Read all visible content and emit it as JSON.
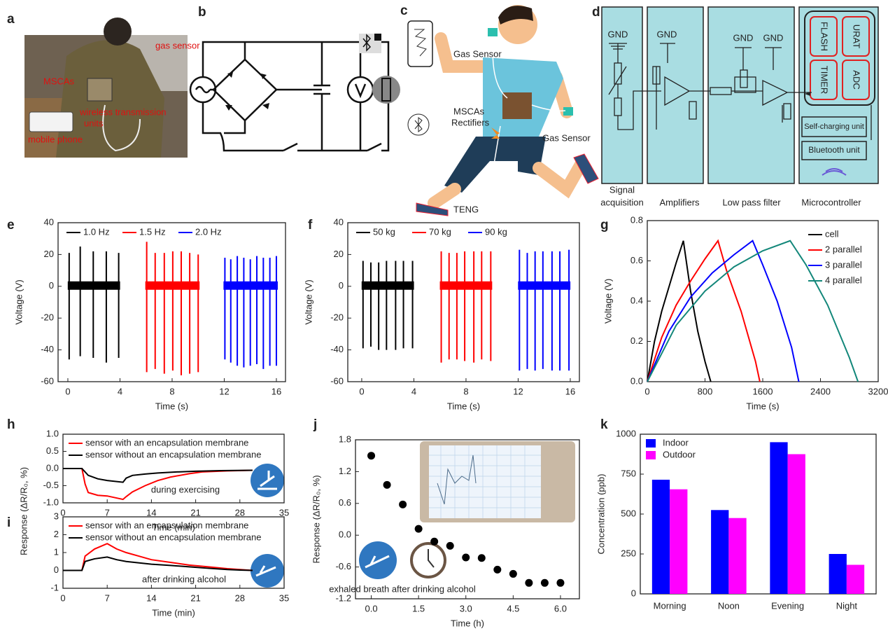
{
  "panel_labels": [
    "a",
    "b",
    "c",
    "d",
    "e",
    "f",
    "g",
    "h",
    "i",
    "j",
    "k"
  ],
  "photo_labels": [
    "gas sensor",
    "MSCAs",
    "wireless transmission",
    "units",
    "mobile phone"
  ],
  "runner_labels": [
    "Gas Sensor",
    "MSCAs",
    "Rectifiers",
    "Gas Sensor",
    "TENG"
  ],
  "block_diagram": {
    "gnd": [
      "GND",
      "GND",
      "GND",
      "GND"
    ],
    "chips": [
      "FLASH",
      "URAT",
      "TIMER",
      "ADC"
    ],
    "units": [
      "Self-charging unit",
      "Bluetooth unit"
    ],
    "blocks": [
      "Signal",
      "acquisition",
      "Amplifiers",
      "Low pass filter",
      "Microcontroller"
    ]
  },
  "chart_data": [
    {
      "type": "spike",
      "xlabel": "Time (s)",
      "ylabel": "Voltage (V)",
      "xlim": [
        -0.75,
        16.7
      ],
      "ylim": [
        -60,
        40
      ],
      "xticks": [
        0,
        4,
        8,
        12,
        16
      ],
      "yticks": [
        -60,
        -40,
        -20,
        0,
        20,
        40
      ],
      "legend": "top",
      "series": [
        {
          "name": "1.0 Hz",
          "color": "#000000",
          "x": [
            0.1,
            0.95,
            1.95,
            2.95,
            3.9
          ],
          "values": [
            21,
            25,
            22,
            22,
            21
          ],
          "min_values": [
            -46,
            -44,
            -45,
            -48,
            -45
          ]
        },
        {
          "name": "1.5 Hz",
          "color": "#ff0000",
          "x": [
            6.05,
            6.7,
            7.4,
            8.05,
            8.7,
            9.35,
            10
          ],
          "values": [
            28,
            21,
            21,
            22,
            22,
            21,
            20
          ],
          "min_values": [
            -54,
            -52,
            -55,
            -53,
            -56,
            -55,
            -54
          ]
        },
        {
          "name": "2.0 Hz",
          "color": "#0000ff",
          "x": [
            12.05,
            12.5,
            13,
            13.5,
            14,
            14.5,
            15,
            15.5,
            16
          ],
          "values": [
            18,
            17,
            19,
            18,
            17,
            19,
            18,
            18,
            19
          ],
          "min_values": [
            -46,
            -48,
            -50,
            -51,
            -50,
            -49,
            -52,
            -50,
            -50
          ]
        }
      ]
    },
    {
      "type": "spike",
      "xlabel": "Time (s)",
      "ylabel": "Voltage (V)",
      "xlim": [
        -1.07,
        16.7
      ],
      "ylim": [
        -60,
        40
      ],
      "xticks": [
        0,
        4,
        8,
        12,
        16
      ],
      "yticks": [
        -60,
        -40,
        -20,
        0,
        20,
        40
      ],
      "legend": "top",
      "series": [
        {
          "name": "50 kg",
          "color": "#000000",
          "x": [
            0.1,
            0.7,
            1.3,
            1.9,
            2.6,
            3.2,
            3.9
          ],
          "values": [
            16,
            15,
            15,
            16,
            16,
            16,
            16
          ],
          "min_values": [
            -39,
            -38,
            -40,
            -40,
            -40,
            -39,
            -39
          ]
        },
        {
          "name": "70 kg",
          "color": "#ff0000",
          "x": [
            6.1,
            6.7,
            7.3,
            7.9,
            8.6,
            9.2,
            9.9
          ],
          "values": [
            22,
            21,
            21,
            22,
            22,
            22,
            22
          ],
          "min_values": [
            -48,
            -46,
            -46,
            -47,
            -48,
            -46,
            -47
          ]
        },
        {
          "name": "90 kg",
          "color": "#0000ff",
          "x": [
            12.1,
            12.7,
            13.3,
            13.9,
            14.6,
            15.2,
            15.9
          ],
          "values": [
            23,
            21,
            22,
            22,
            22,
            22,
            23
          ],
          "min_values": [
            -53,
            -52,
            -53,
            -52,
            -53,
            -53,
            -53
          ]
        }
      ]
    },
    {
      "type": "line",
      "xlabel": "Time (s)",
      "ylabel": "Voltage (V)",
      "xlim": [
        0,
        3200
      ],
      "ylim": [
        0,
        0.8
      ],
      "xticks": [
        0,
        800,
        1600,
        2400,
        3200
      ],
      "yticks": [
        {
          "value": 0,
          "label": "0.0"
        },
        0.2,
        0.4,
        0.6,
        0.8
      ],
      "legend": "upper right",
      "series": [
        {
          "name": "cell",
          "color": "#000000",
          "x": [
            0,
            100,
            200,
            300,
            400,
            500,
            600,
            700,
            800,
            880
          ],
          "values": [
            0,
            0.2,
            0.35,
            0.47,
            0.59,
            0.7,
            0.45,
            0.25,
            0.1,
            0
          ]
        },
        {
          "name": "2 parallel",
          "color": "#ff0000",
          "x": [
            0,
            200,
            400,
            600,
            800,
            980,
            1100,
            1300,
            1500,
            1560
          ],
          "values": [
            0,
            0.22,
            0.38,
            0.5,
            0.61,
            0.7,
            0.55,
            0.35,
            0.1,
            0
          ]
        },
        {
          "name": "3 parallel",
          "color": "#0000ff",
          "x": [
            0,
            300,
            600,
            900,
            1200,
            1460,
            1600,
            1800,
            2000,
            2100
          ],
          "values": [
            0,
            0.25,
            0.42,
            0.54,
            0.63,
            0.7,
            0.58,
            0.4,
            0.17,
            0
          ]
        },
        {
          "name": "4 parallel",
          "color": "#13877a",
          "x": [
            0,
            400,
            800,
            1200,
            1600,
            1980,
            2200,
            2500,
            2800,
            2920
          ],
          "values": [
            0,
            0.28,
            0.45,
            0.57,
            0.65,
            0.7,
            0.58,
            0.38,
            0.12,
            0
          ]
        }
      ]
    },
    {
      "type": "line",
      "xlabel": "Time (min)",
      "ylabel": "Response (ΔR/R₀, %)",
      "annotation": "during exercising",
      "xlim": [
        0,
        35
      ],
      "ylim": [
        -1,
        1
      ],
      "xticks": [
        0,
        7,
        14,
        21,
        28,
        35
      ],
      "yticks": [
        {
          "value": -1,
          "label": "-1.0"
        },
        -0.5,
        {
          "value": 0,
          "label": "0.0"
        },
        0.5,
        {
          "value": 1,
          "label": "1.0"
        }
      ],
      "legend": "upper left",
      "series": [
        {
          "name": "sensor with an encapsulation membrane",
          "color": "#ff0000",
          "x": [
            0,
            3,
            3.5,
            4,
            5.5,
            7,
            9.5,
            10,
            11,
            13,
            15,
            17,
            20,
            22,
            26,
            30
          ],
          "values": [
            0,
            0,
            -0.45,
            -0.7,
            -0.78,
            -0.8,
            -0.9,
            -0.82,
            -0.68,
            -0.5,
            -0.35,
            -0.25,
            -0.15,
            -0.1,
            -0.07,
            -0.05
          ]
        },
        {
          "name": "sensor without an encapsulation membrane",
          "color": "#000000",
          "x": [
            0,
            3,
            4,
            5.5,
            7,
            9.5,
            10,
            11,
            13,
            15,
            18,
            21,
            25,
            30
          ],
          "values": [
            0,
            0,
            -0.2,
            -0.3,
            -0.35,
            -0.4,
            -0.28,
            -0.2,
            -0.16,
            -0.13,
            -0.1,
            -0.08,
            -0.06,
            -0.05
          ]
        }
      ]
    },
    {
      "type": "line",
      "xlabel": "Time (min)",
      "annotation": "after drinking alcohol",
      "xlim": [
        0,
        35
      ],
      "ylim": [
        -1,
        3
      ],
      "xticks": [
        0,
        7,
        14,
        21,
        28,
        35
      ],
      "yticks": [
        -1,
        0,
        1,
        2,
        3
      ],
      "legend": "upper left",
      "series": [
        {
          "name": "sensor with an encapsulation membrane",
          "color": "#ff0000",
          "x": [
            0,
            3,
            3.5,
            5,
            7,
            8.5,
            10,
            12,
            14,
            17,
            20,
            23,
            26,
            28,
            30
          ],
          "values": [
            0,
            0,
            0.8,
            1.2,
            1.5,
            1.2,
            1,
            0.8,
            0.6,
            0.45,
            0.3,
            0.2,
            0.1,
            0.05,
            0
          ]
        },
        {
          "name": "sensor without an encapsulation membrane",
          "color": "#000000",
          "x": [
            0,
            3,
            3.5,
            5,
            7,
            8.5,
            10,
            14,
            17,
            20,
            23,
            26,
            28,
            30
          ],
          "values": [
            0,
            0,
            0.5,
            0.65,
            0.75,
            0.6,
            0.5,
            0.35,
            0.28,
            0.2,
            0.12,
            0.05,
            0.02,
            0
          ]
        }
      ]
    },
    {
      "type": "scatter",
      "xlabel": "Time (h)",
      "ylabel": "Response (ΔR/R₀, %)",
      "annotation": "exhaled breath after  drinking alcohol",
      "xlim": [
        -0.5,
        6.6
      ],
      "ylim": [
        -1.2,
        1.8
      ],
      "xticks": [
        {
          "value": 0,
          "label": "0.0"
        },
        1.5,
        {
          "value": 3,
          "label": "3.0"
        },
        4.5,
        {
          "value": 6,
          "label": "6.0"
        }
      ],
      "yticks": [
        -1.2,
        -0.6,
        {
          "value": 0,
          "label": "0.0"
        },
        0.6,
        1.2,
        1.8
      ],
      "color": "#000000",
      "x": [
        0,
        0.5,
        1,
        1.5,
        2,
        2.5,
        3,
        3.5,
        4,
        4.5,
        5,
        5.5,
        6
      ],
      "values": [
        1.5,
        0.95,
        0.58,
        0.12,
        -0.12,
        -0.2,
        -0.42,
        -0.43,
        -0.65,
        -0.73,
        -0.9,
        -0.9,
        -0.9
      ]
    },
    {
      "type": "bar",
      "ylabel": "Concentration (ppb)",
      "categories": [
        "Morning",
        "Noon",
        "Evening",
        "Night"
      ],
      "ylim": [
        0,
        1000
      ],
      "yticks": [
        0,
        250,
        500,
        750,
        1000
      ],
      "legend": "upper left",
      "series": [
        {
          "name": "Indoor",
          "color": "#0000ff",
          "values": [
            715,
            525,
            950,
            250
          ]
        },
        {
          "name": "Outdoor",
          "color": "#ff00ff",
          "values": [
            655,
            475,
            875,
            182
          ]
        }
      ]
    }
  ]
}
